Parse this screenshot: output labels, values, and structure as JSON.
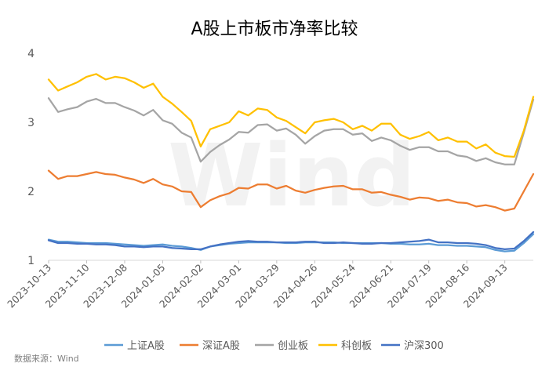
{
  "chart_data": {
    "type": "line",
    "title": "A股上市板市净率比较",
    "xlabel": "",
    "ylabel": "",
    "ylim": [
      1,
      4
    ],
    "yticks": [
      "1",
      "2",
      "3",
      "4"
    ],
    "grid": false,
    "legend_position": "bottom",
    "source": "数据来源：Wind",
    "watermark": "Wind",
    "x_tick_labels": [
      "2023-10-13",
      "2023-11-10",
      "2023-12-08",
      "2024-01-05",
      "2024-02-02",
      "2024-03-01",
      "2024-03-29",
      "2024-04-26",
      "2024-05-24",
      "2024-06-21",
      "2024-07-19",
      "2024-08-16",
      "2024-09-13"
    ],
    "x": [
      "2023-10-13",
      "2023-10-20",
      "2023-10-27",
      "2023-11-03",
      "2023-11-10",
      "2023-11-17",
      "2023-11-24",
      "2023-12-01",
      "2023-12-08",
      "2023-12-15",
      "2023-12-22",
      "2023-12-29",
      "2024-01-05",
      "2024-01-12",
      "2024-01-19",
      "2024-01-26",
      "2024-02-02",
      "2024-02-09",
      "2024-02-16",
      "2024-02-23",
      "2024-03-01",
      "2024-03-08",
      "2024-03-15",
      "2024-03-22",
      "2024-03-29",
      "2024-04-05",
      "2024-04-12",
      "2024-04-19",
      "2024-04-26",
      "2024-05-03",
      "2024-05-10",
      "2024-05-17",
      "2024-05-24",
      "2024-05-31",
      "2024-06-07",
      "2024-06-14",
      "2024-06-21",
      "2024-06-28",
      "2024-07-05",
      "2024-07-12",
      "2024-07-19",
      "2024-07-26",
      "2024-08-02",
      "2024-08-09",
      "2024-08-16",
      "2024-08-23",
      "2024-08-30",
      "2024-09-06",
      "2024-09-13",
      "2024-09-20",
      "2024-09-27",
      "2024-10-04"
    ],
    "series": [
      {
        "name": "上证A股",
        "color": "#5B9BD5",
        "values": [
          1.3,
          1.27,
          1.27,
          1.26,
          1.25,
          1.25,
          1.25,
          1.24,
          1.23,
          1.22,
          1.21,
          1.22,
          1.23,
          1.21,
          1.2,
          1.18,
          1.15,
          1.2,
          1.22,
          1.24,
          1.25,
          1.26,
          1.26,
          1.26,
          1.26,
          1.25,
          1.25,
          1.26,
          1.26,
          1.26,
          1.26,
          1.25,
          1.25,
          1.25,
          1.25,
          1.25,
          1.24,
          1.24,
          1.23,
          1.23,
          1.24,
          1.22,
          1.22,
          1.21,
          1.21,
          1.2,
          1.19,
          1.15,
          1.13,
          1.14,
          1.25,
          1.38
        ]
      },
      {
        "name": "深证A股",
        "color": "#ED7D31",
        "values": [
          2.3,
          2.18,
          2.22,
          2.22,
          2.25,
          2.28,
          2.25,
          2.24,
          2.2,
          2.17,
          2.12,
          2.18,
          2.1,
          2.07,
          2.0,
          1.99,
          1.77,
          1.87,
          1.93,
          1.97,
          2.05,
          2.04,
          2.1,
          2.1,
          2.04,
          2.08,
          2.01,
          1.98,
          2.02,
          2.05,
          2.07,
          2.08,
          2.03,
          2.03,
          1.98,
          1.99,
          1.95,
          1.92,
          1.88,
          1.91,
          1.9,
          1.86,
          1.88,
          1.84,
          1.83,
          1.78,
          1.8,
          1.77,
          1.72,
          1.75,
          2.0,
          2.25
        ]
      },
      {
        "name": "创业板",
        "color": "#A5A5A5",
        "values": [
          3.35,
          3.15,
          3.19,
          3.22,
          3.3,
          3.34,
          3.28,
          3.28,
          3.22,
          3.17,
          3.1,
          3.18,
          3.03,
          2.98,
          2.85,
          2.78,
          2.43,
          2.57,
          2.67,
          2.75,
          2.86,
          2.85,
          2.96,
          2.97,
          2.88,
          2.91,
          2.82,
          2.69,
          2.8,
          2.88,
          2.9,
          2.9,
          2.82,
          2.84,
          2.73,
          2.78,
          2.74,
          2.66,
          2.6,
          2.64,
          2.64,
          2.58,
          2.58,
          2.52,
          2.5,
          2.44,
          2.48,
          2.42,
          2.39,
          2.39,
          2.85,
          3.33
        ]
      },
      {
        "name": "科创板",
        "color": "#FFC000",
        "values": [
          3.62,
          3.46,
          3.52,
          3.58,
          3.66,
          3.7,
          3.62,
          3.66,
          3.64,
          3.58,
          3.5,
          3.56,
          3.37,
          3.27,
          3.15,
          3.02,
          2.65,
          2.9,
          2.95,
          3.0,
          3.16,
          3.1,
          3.2,
          3.18,
          3.07,
          3.02,
          2.93,
          2.84,
          3.0,
          3.03,
          3.05,
          3.0,
          2.9,
          2.95,
          2.88,
          2.98,
          2.98,
          2.82,
          2.76,
          2.8,
          2.86,
          2.74,
          2.78,
          2.72,
          2.72,
          2.62,
          2.68,
          2.56,
          2.51,
          2.5,
          2.88,
          3.37
        ]
      },
      {
        "name": "沪深300",
        "color": "#4472C4",
        "values": [
          1.29,
          1.25,
          1.25,
          1.24,
          1.24,
          1.23,
          1.23,
          1.22,
          1.2,
          1.2,
          1.19,
          1.2,
          1.2,
          1.18,
          1.17,
          1.16,
          1.16,
          1.2,
          1.23,
          1.25,
          1.27,
          1.28,
          1.27,
          1.27,
          1.26,
          1.26,
          1.26,
          1.27,
          1.27,
          1.25,
          1.25,
          1.26,
          1.25,
          1.24,
          1.24,
          1.25,
          1.25,
          1.26,
          1.27,
          1.28,
          1.3,
          1.26,
          1.26,
          1.25,
          1.25,
          1.24,
          1.22,
          1.18,
          1.16,
          1.17,
          1.28,
          1.41
        ]
      }
    ]
  }
}
